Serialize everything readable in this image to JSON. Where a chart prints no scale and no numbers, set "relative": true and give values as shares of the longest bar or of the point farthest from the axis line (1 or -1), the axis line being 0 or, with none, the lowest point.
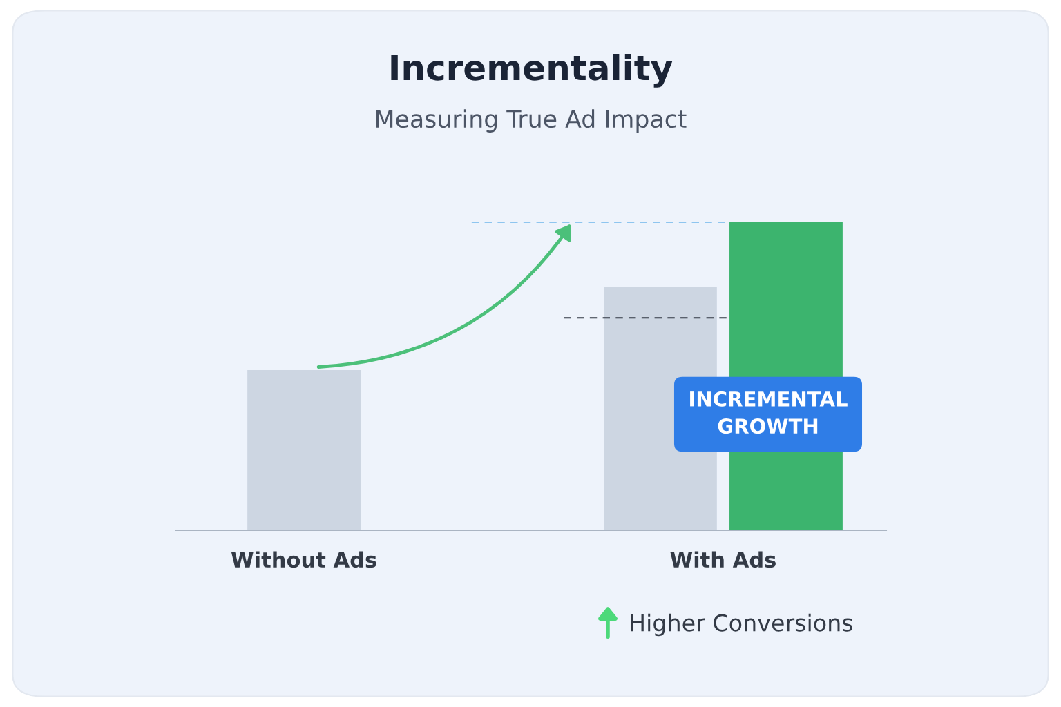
{
  "chart_data": {
    "type": "bar",
    "title": "Incrementality",
    "subtitle": "Measuring True Ad Impact",
    "categories": [
      "Without Ads",
      "With Ads"
    ],
    "series": [
      {
        "color": "#cdd6e2",
        "values": [
          0.52,
          0.79
        ]
      },
      {
        "color": "#3cb46e",
        "values": [
          null,
          1
        ]
      }
    ],
    "relative": true,
    "ref_lines": [
      {
        "axis": "y",
        "value": 1,
        "color": "#8ec5ef",
        "line_style": "dashed"
      },
      {
        "axis": "y",
        "value": 0.69,
        "color": "#333a46",
        "line_style": "dashed"
      }
    ],
    "annotations": [
      "INCREMENTAL GROWTH",
      "Higher Conversions"
    ],
    "grid": false,
    "legend": false
  }
}
